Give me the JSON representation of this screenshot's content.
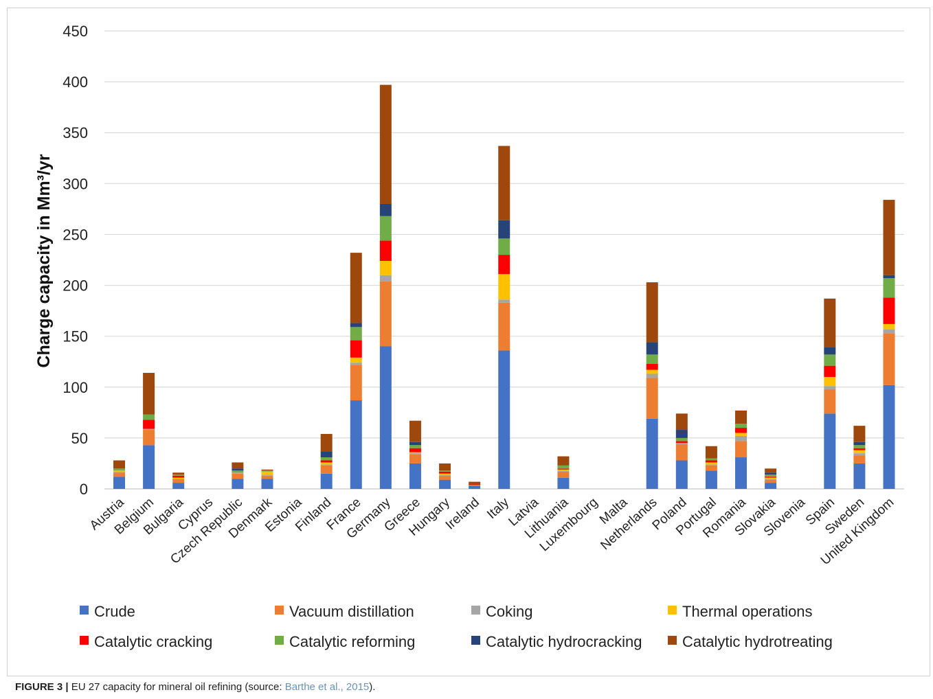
{
  "chart_data": {
    "type": "bar",
    "stacked": true,
    "ylabel": "Charge capacity in Mm³/yr",
    "ylim": [
      0,
      450
    ],
    "yticks": [
      0,
      50,
      100,
      150,
      200,
      250,
      300,
      350,
      400,
      450
    ],
    "grid": true,
    "legend_position": "bottom",
    "categories": [
      "Austria",
      "Belgium",
      "Bulgaria",
      "Cyprus",
      "Czech Republic",
      "Denmark",
      "Estonia",
      "Finland",
      "France",
      "Germany",
      "Greece",
      "Hungary",
      "Ireland",
      "Italy",
      "Latvia",
      "Lithuania",
      "Luxembourg",
      "Malta",
      "Netherlands",
      "Poland",
      "Portugal",
      "Romania",
      "Slovakia",
      "Slovenia",
      "Spain",
      "Sweden",
      "United Kingdom"
    ],
    "series": [
      {
        "name": "Crude",
        "color": "#4472c4",
        "values": [
          12,
          43,
          6,
          0,
          10,
          10,
          0,
          15,
          87,
          140,
          25,
          9,
          3,
          136,
          0,
          11,
          0,
          0,
          69,
          28,
          18,
          31,
          6,
          0,
          74,
          25,
          102
        ]
      },
      {
        "name": "Vacuum distillation",
        "color": "#ed7d31",
        "values": [
          4,
          15,
          4,
          0,
          5,
          3,
          0,
          8,
          35,
          64,
          9,
          4,
          1,
          47,
          0,
          6,
          0,
          0,
          40,
          16,
          5,
          16,
          3,
          0,
          24,
          8,
          51
        ]
      },
      {
        "name": "Coking",
        "color": "#a5a5a5",
        "values": [
          1,
          1,
          0,
          0,
          1,
          1,
          0,
          1,
          2,
          6,
          1,
          1,
          0,
          3,
          0,
          1,
          0,
          0,
          4,
          1,
          1,
          5,
          1,
          0,
          3,
          2,
          4
        ]
      },
      {
        "name": "Thermal operations",
        "color": "#ffc000",
        "values": [
          1,
          0,
          1,
          0,
          0,
          3,
          0,
          2,
          5,
          14,
          1,
          1,
          0,
          25,
          0,
          1,
          0,
          0,
          4,
          0,
          2,
          3,
          1,
          0,
          9,
          3,
          5
        ]
      },
      {
        "name": "Catalytic cracking",
        "color": "#ff0000",
        "values": [
          0,
          9,
          2,
          0,
          0,
          0,
          0,
          2,
          17,
          20,
          4,
          2,
          1,
          19,
          0,
          1,
          0,
          0,
          6,
          2,
          2,
          5,
          1,
          0,
          11,
          2,
          26
        ]
      },
      {
        "name": "Catalytic reforming",
        "color": "#70ad47",
        "values": [
          2,
          5,
          1,
          0,
          2,
          1,
          0,
          3,
          13,
          24,
          3,
          1,
          0,
          16,
          0,
          3,
          0,
          0,
          9,
          3,
          2,
          4,
          2,
          0,
          11,
          3,
          19
        ]
      },
      {
        "name": "Catalytic hydrocracking",
        "color": "#264478",
        "values": [
          0,
          0,
          0,
          0,
          2,
          0,
          0,
          6,
          4,
          12,
          3,
          0,
          0,
          18,
          0,
          0,
          0,
          0,
          12,
          8,
          0,
          0,
          2,
          0,
          7,
          3,
          3
        ]
      },
      {
        "name": "Catalytic hydrotreating",
        "color": "#9e480e",
        "values": [
          8,
          41,
          2,
          0,
          6,
          1,
          0,
          17,
          69,
          117,
          21,
          7,
          2,
          73,
          0,
          9,
          0,
          0,
          59,
          16,
          12,
          13,
          4,
          0,
          48,
          16,
          74
        ]
      }
    ]
  },
  "caption": {
    "label": "FIGURE 3 |",
    "text": " EU 27 capacity for mineral oil refining (source: ",
    "link": "Barthe et al., 2015",
    "tail": ")."
  }
}
